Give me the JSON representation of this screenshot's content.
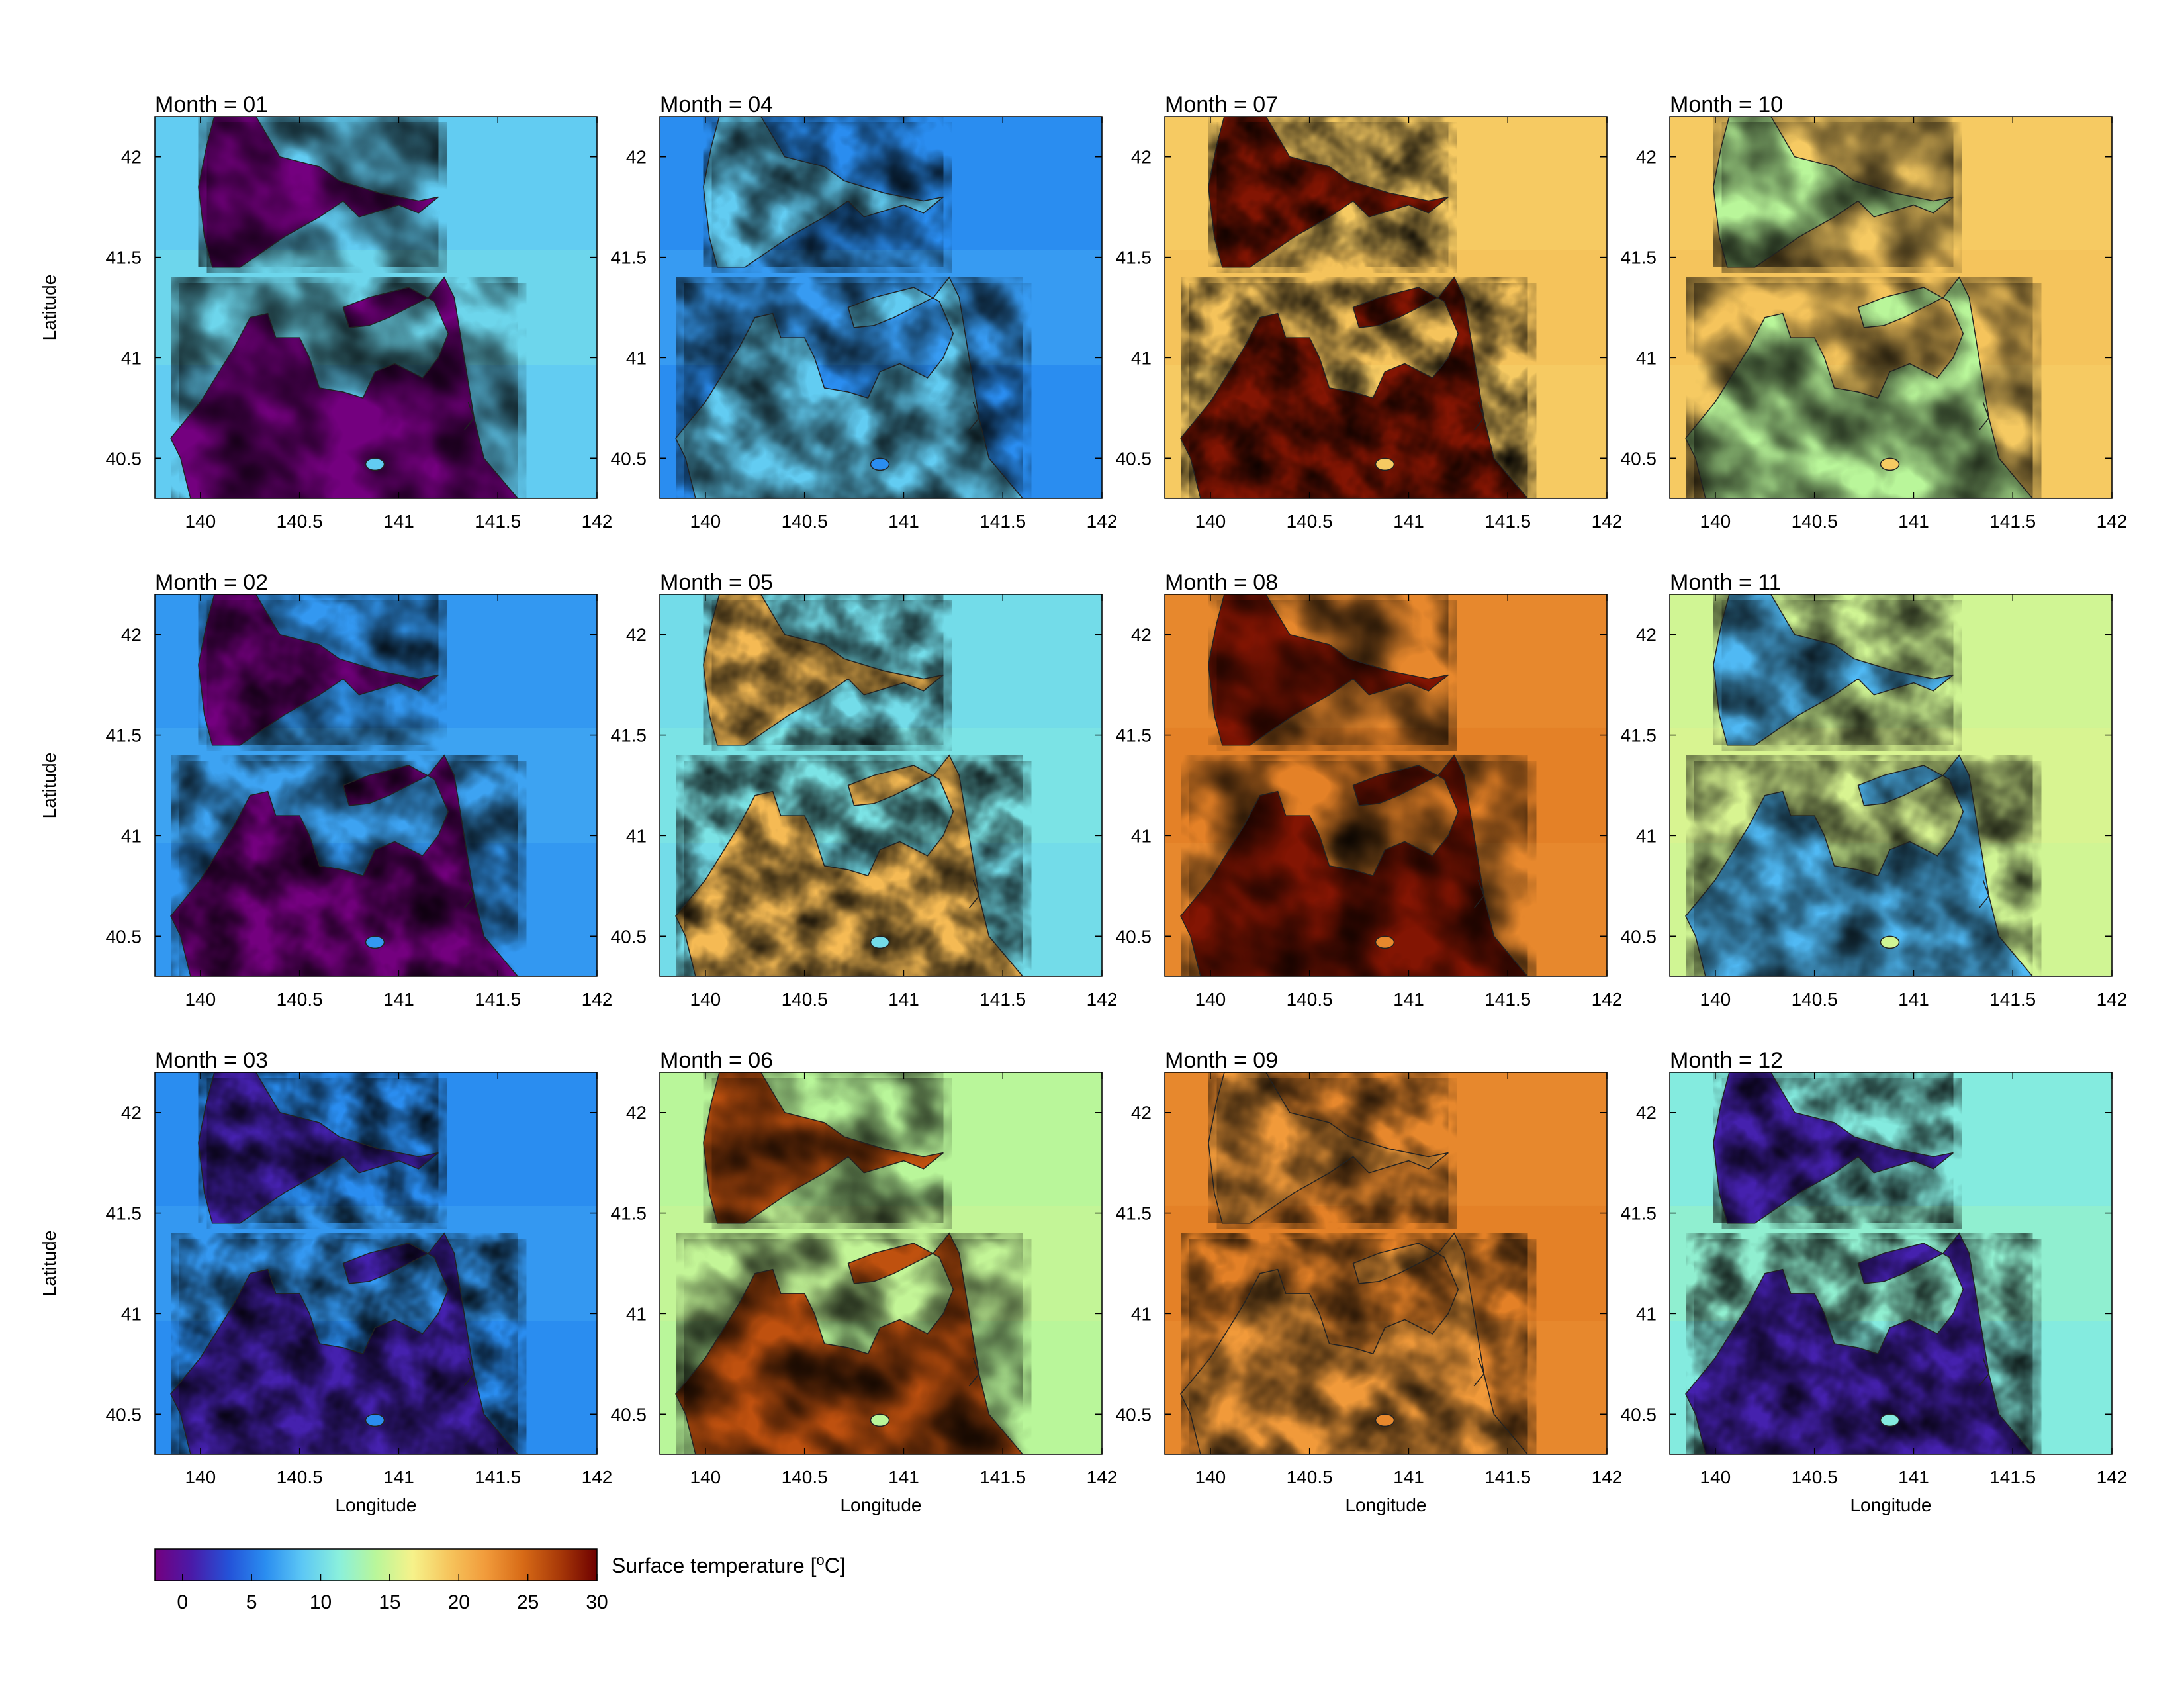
{
  "chart_data": {
    "type": "heatmap",
    "layout": {
      "rows": 3,
      "cols": 4
    },
    "x_axis": {
      "label": "Longitude",
      "range": [
        139.77,
        142.0
      ],
      "ticks": [
        "140",
        "140.5",
        "141",
        "141.5",
        "142"
      ]
    },
    "y_axis": {
      "label": "Latitude",
      "range": [
        40.3,
        42.2
      ],
      "ticks": [
        "40.5",
        "41",
        "41.5",
        "42"
      ]
    },
    "panels": [
      {
        "title": "Month = 01",
        "month": 1,
        "land_value": -2,
        "sea_value": 9,
        "land_variation": 1,
        "sea_variation": 1.5
      },
      {
        "title": "Month = 04",
        "month": 4,
        "land_value": 9,
        "sea_value": 6,
        "land_variation": 7,
        "sea_variation": 1.5
      },
      {
        "title": "Month = 07",
        "month": 7,
        "land_value": 29,
        "sea_value": 19,
        "land_variation": 2.5,
        "sea_variation": 1
      },
      {
        "title": "Month = 10",
        "month": 10,
        "land_value": 14,
        "sea_value": 19,
        "land_variation": 4,
        "sea_variation": 0.8
      },
      {
        "title": "Month = 02",
        "month": 2,
        "land_value": -2,
        "sea_value": 6.5,
        "land_variation": 1,
        "sea_variation": 1.2
      },
      {
        "title": "Month = 05",
        "month": 5,
        "land_value": 20,
        "sea_value": 10,
        "land_variation": 5,
        "sea_variation": 1
      },
      {
        "title": "Month = 08",
        "month": 8,
        "land_value": 29,
        "sea_value": 23,
        "land_variation": 2,
        "sea_variation": 0.8
      },
      {
        "title": "Month = 11",
        "month": 11,
        "land_value": 8,
        "sea_value": 15,
        "land_variation": 2.5,
        "sea_variation": 0.8
      },
      {
        "title": "Month = 03",
        "month": 3,
        "land_value": 1,
        "sea_value": 6,
        "land_variation": 3,
        "sea_variation": 1.2
      },
      {
        "title": "Month = 06",
        "month": 6,
        "land_value": 26,
        "sea_value": 14,
        "land_variation": 3,
        "sea_variation": 1
      },
      {
        "title": "Month = 09",
        "month": 9,
        "land_value": 22,
        "sea_value": 23,
        "land_variation": 4,
        "sea_variation": 0.8
      },
      {
        "title": "Month = 12",
        "month": 12,
        "land_value": 1,
        "sea_value": 11,
        "land_variation": 2.5,
        "sea_variation": 1.5
      }
    ],
    "colorbar": {
      "label": "Surface temperature [oC]",
      "range": [
        -2,
        30
      ],
      "ticks": [
        "0",
        "5",
        "10",
        "15",
        "20",
        "25",
        "30"
      ],
      "colors": [
        "#74007f",
        "#4a1aa8",
        "#2452d8",
        "#2a8df0",
        "#5cc7f5",
        "#8af0dc",
        "#b9f69a",
        "#f6f28a",
        "#f6c45c",
        "#f19a3a",
        "#d76a16",
        "#a73808",
        "#6e0000"
      ]
    },
    "grid": false
  }
}
